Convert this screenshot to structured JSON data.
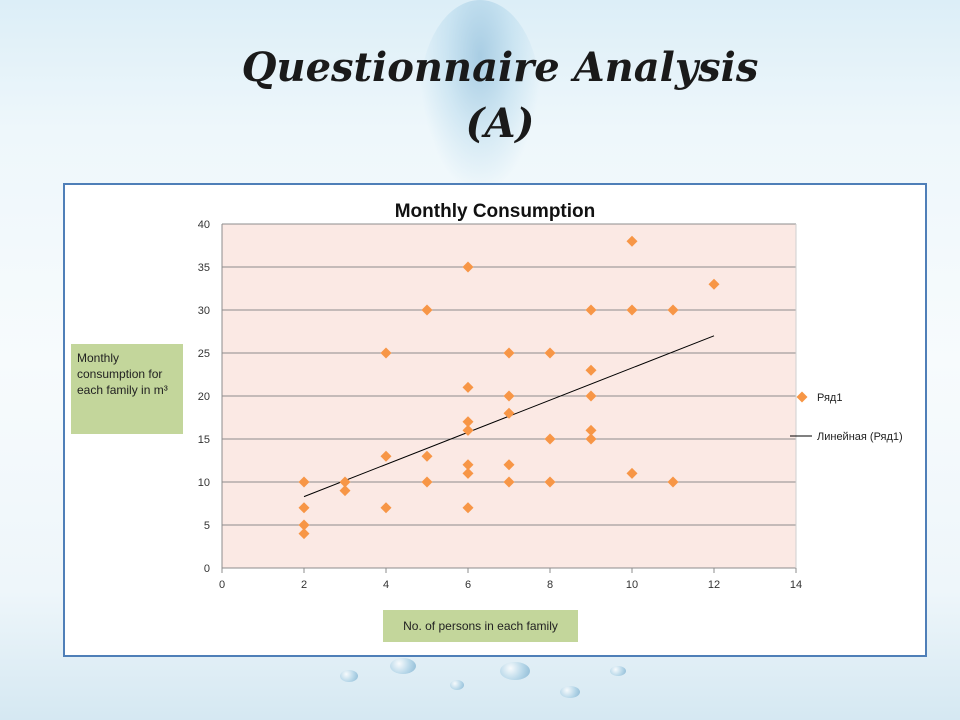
{
  "slide": {
    "title_line1": "Questionnaire Analysis",
    "title_line2": "(A)",
    "y_axis_box": "Monthly consumption for each family in m³",
    "x_axis_box": "No. of persons in each family"
  },
  "colors": {
    "marker": "#f79646",
    "plot_bg": "#fbe9e4",
    "frame": "#4f7fb8",
    "label_box": "#c3d69b"
  },
  "chart_data": {
    "type": "scatter",
    "title": "Monthly Consumption",
    "xlim": [
      0,
      14
    ],
    "ylim": [
      0,
      40
    ],
    "x_ticks": [
      "0",
      "2",
      "4",
      "6",
      "8",
      "10",
      "12",
      "14"
    ],
    "y_ticks": [
      "0",
      "5",
      "10",
      "15",
      "20",
      "25",
      "30",
      "35",
      "40"
    ],
    "grid": "horizontal",
    "legend_position": "right",
    "series": [
      {
        "name": "Ряд1",
        "marker": "diamond",
        "points": [
          {
            "x": 2,
            "y": 4
          },
          {
            "x": 2,
            "y": 5
          },
          {
            "x": 2,
            "y": 7
          },
          {
            "x": 2,
            "y": 10
          },
          {
            "x": 3,
            "y": 9
          },
          {
            "x": 3,
            "y": 10
          },
          {
            "x": 4,
            "y": 7
          },
          {
            "x": 4,
            "y": 13
          },
          {
            "x": 4,
            "y": 25
          },
          {
            "x": 5,
            "y": 10
          },
          {
            "x": 5,
            "y": 13
          },
          {
            "x": 5,
            "y": 30
          },
          {
            "x": 6,
            "y": 7
          },
          {
            "x": 6,
            "y": 11
          },
          {
            "x": 6,
            "y": 12
          },
          {
            "x": 6,
            "y": 16
          },
          {
            "x": 6,
            "y": 17
          },
          {
            "x": 6,
            "y": 21
          },
          {
            "x": 6,
            "y": 35
          },
          {
            "x": 7,
            "y": 10
          },
          {
            "x": 7,
            "y": 12
          },
          {
            "x": 7,
            "y": 18
          },
          {
            "x": 7,
            "y": 20
          },
          {
            "x": 7,
            "y": 25
          },
          {
            "x": 8,
            "y": 10
          },
          {
            "x": 8,
            "y": 15
          },
          {
            "x": 8,
            "y": 25
          },
          {
            "x": 9,
            "y": 15
          },
          {
            "x": 9,
            "y": 16
          },
          {
            "x": 9,
            "y": 20
          },
          {
            "x": 9,
            "y": 23
          },
          {
            "x": 9,
            "y": 30
          },
          {
            "x": 10,
            "y": 11
          },
          {
            "x": 10,
            "y": 30
          },
          {
            "x": 10,
            "y": 38
          },
          {
            "x": 11,
            "y": 10
          },
          {
            "x": 11,
            "y": 30
          },
          {
            "x": 12,
            "y": 33
          }
        ]
      }
    ],
    "trendline": {
      "name": "Линейная (Ряд1)",
      "type": "linear",
      "from": {
        "x": 2,
        "y": 8.3
      },
      "to": {
        "x": 12,
        "y": 27
      }
    }
  }
}
